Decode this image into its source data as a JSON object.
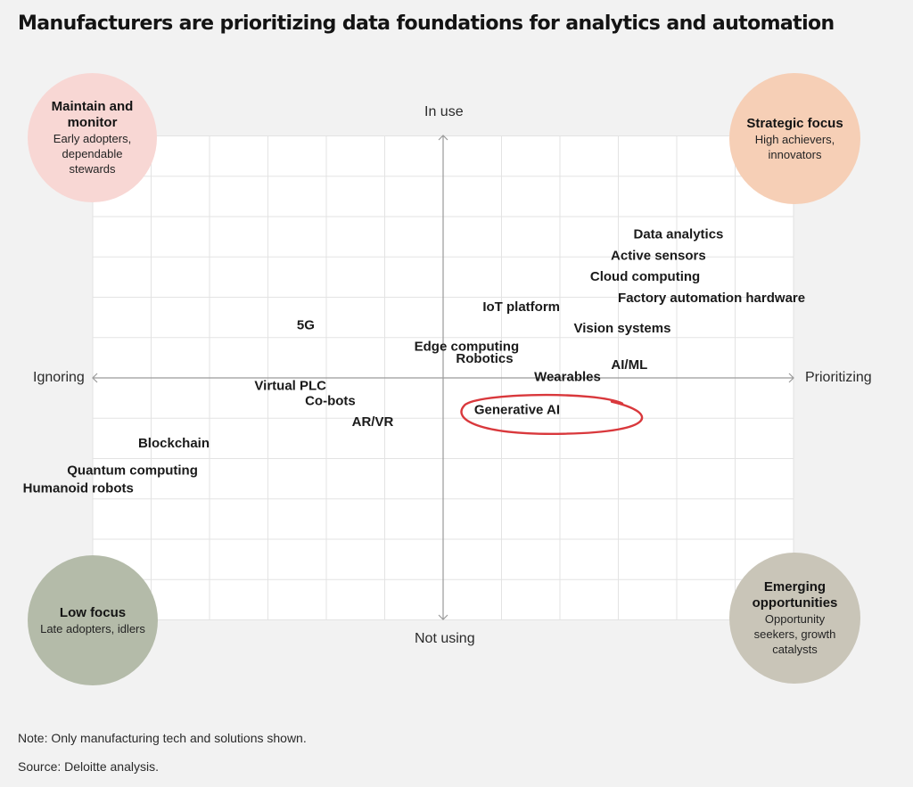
{
  "title": "Manufacturers are prioritizing data foundations for analytics and automation",
  "axes": {
    "top": "In use",
    "bottom": "Not using",
    "left": "Ignoring",
    "right": "Prioritizing"
  },
  "quadrants": {
    "top_left": {
      "title": "Maintain and monitor",
      "subtitle": "Early adopters, dependable stewards",
      "color": "#f8d7d4"
    },
    "top_right": {
      "title": "Strategic focus",
      "subtitle": "High achievers, innovators",
      "color": "#f6cfb6"
    },
    "bottom_left": {
      "title": "Low focus",
      "subtitle": "Late adopters, idlers",
      "color": "#b4bba9"
    },
    "bottom_right": {
      "title": "Emerging opportunities",
      "subtitle": "Opportunity seekers, growth catalysts",
      "color": "#c9c5b8"
    }
  },
  "highlight": {
    "label": "Generative AI",
    "color": "#d9383c"
  },
  "chart_data": {
    "type": "scatter",
    "x_axis": {
      "negative": "Ignoring",
      "positive": "Prioritizing",
      "range": [
        -6,
        6
      ]
    },
    "y_axis": {
      "negative": "Not using",
      "positive": "In use",
      "range": [
        -4,
        4
      ]
    },
    "grid": true,
    "points": [
      {
        "label": "Data analytics",
        "x": 4.8,
        "y": 2.3
      },
      {
        "label": "Active sensors",
        "x": 4.5,
        "y": 1.95
      },
      {
        "label": "Cloud computing",
        "x": 4.4,
        "y": 1.6
      },
      {
        "label": "Factory automation hardware",
        "x": 6.2,
        "y": 1.25
      },
      {
        "label": "IoT platform",
        "x": 2.0,
        "y": 1.1
      },
      {
        "label": "Vision systems",
        "x": 3.9,
        "y": 0.75
      },
      {
        "label": "5G",
        "x": -2.2,
        "y": 0.8
      },
      {
        "label": "Edge computing",
        "x": 1.3,
        "y": 0.45
      },
      {
        "label": "Robotics",
        "x": 1.2,
        "y": 0.25
      },
      {
        "label": "AI/ML",
        "x": 3.5,
        "y": 0.15
      },
      {
        "label": "Wearables",
        "x": 2.7,
        "y": -0.05
      },
      {
        "label": "Virtual PLC",
        "x": -2.0,
        "y": -0.2
      },
      {
        "label": "Co-bots",
        "x": -1.5,
        "y": -0.45
      },
      {
        "label": "Generative AI",
        "x": 2.0,
        "y": -0.6
      },
      {
        "label": "AR/VR",
        "x": -0.85,
        "y": -0.8
      },
      {
        "label": "Blockchain",
        "x": -4.0,
        "y": -1.15
      },
      {
        "label": "Quantum computing",
        "x": -4.2,
        "y": -1.6
      },
      {
        "label": "Humanoid robots",
        "x": -5.3,
        "y": -1.9
      }
    ]
  },
  "notes": {
    "note": "Note: Only manufacturing tech and solutions shown.",
    "source": "Source: Deloitte analysis."
  }
}
